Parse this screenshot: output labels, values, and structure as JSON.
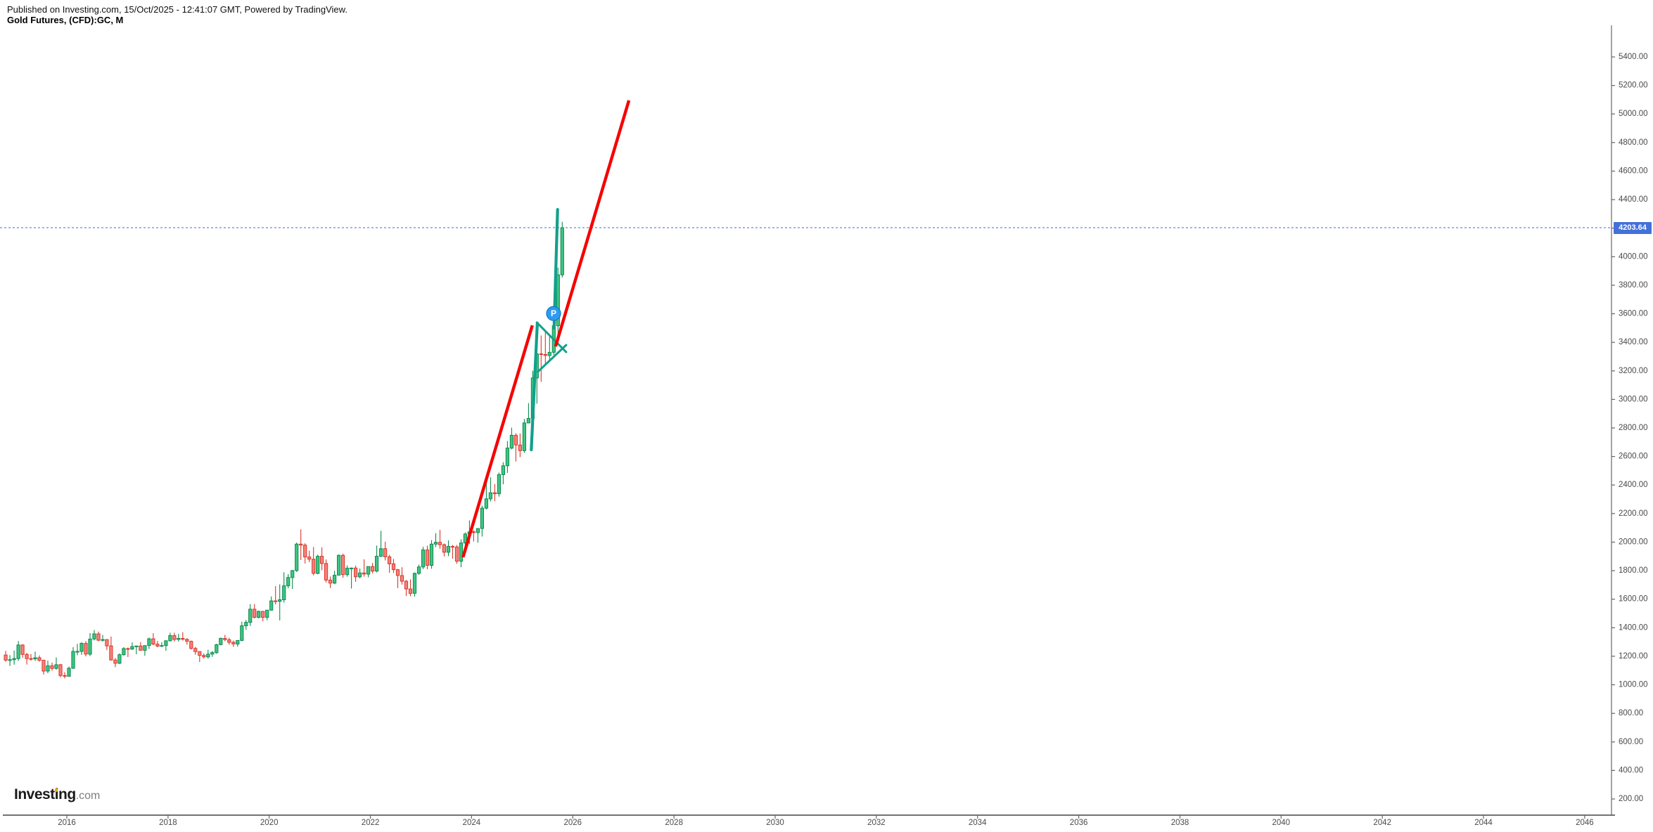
{
  "header": {
    "published_line": "Published on Investing.com, 15/Oct/2025 - 12:41:07 GMT, Powered by TradingView.",
    "instrument_line": "Gold Futures, (CFD):GC, M"
  },
  "logo": {
    "part1": "Invest",
    "part2": "i",
    "part3": "ng",
    "suffix": ".com"
  },
  "price_axis": {
    "last_price_label": "4203.64",
    "ticks": [
      "5400.00",
      "5200.00",
      "5000.00",
      "4800.00",
      "4600.00",
      "4400.00",
      "4200.00",
      "4000.00",
      "3800.00",
      "3600.00",
      "3400.00",
      "3200.00",
      "3000.00",
      "2800.00",
      "2600.00",
      "2400.00",
      "2200.00",
      "2000.00",
      "1800.00",
      "1600.00",
      "1400.00",
      "1200.00",
      "1000.00",
      "800.00",
      "600.00",
      "400.00",
      "200.00"
    ]
  },
  "time_axis": {
    "ticks": [
      "2016",
      "2018",
      "2020",
      "2022",
      "2024",
      "2026",
      "2028",
      "2030",
      "2032",
      "2034",
      "2036",
      "2038",
      "2040",
      "2042",
      "2044",
      "2046"
    ]
  },
  "colors": {
    "up_fill": "#3ec583",
    "up_border": "#0e8a4e",
    "down_fill": "#f2837b",
    "down_border": "#da372a",
    "drawing_teal": "#12a08c",
    "trend_red": "#f60000",
    "last_price_line": "#4666d6",
    "badge_bg": "#4470da",
    "marker_bg": "#2d9bf0",
    "marker_border": "#1478c8",
    "axis_text": "#4a4a4a",
    "axis_line": "#666666"
  },
  "chart_data": {
    "type": "candlestick",
    "title": "Gold Futures, (CFD):GC, M",
    "interval": "monthly",
    "last_price": 4203.64,
    "y_axis": {
      "min": 200,
      "max": 5400,
      "step": 200,
      "side": "right"
    },
    "x_axis": {
      "start_year": 2016,
      "end_year": 2046,
      "step": 2
    },
    "grid": false,
    "candles_format": [
      "year",
      "month",
      "open",
      "high",
      "low",
      "close"
    ],
    "candles": [
      [
        2014,
        10,
        1209,
        1238,
        1161,
        1173
      ],
      [
        2014,
        11,
        1173,
        1208,
        1132,
        1176
      ],
      [
        2014,
        12,
        1176,
        1239,
        1141,
        1184
      ],
      [
        2015,
        1,
        1184,
        1307,
        1167,
        1279
      ],
      [
        2015,
        2,
        1279,
        1285,
        1190,
        1213
      ],
      [
        2015,
        3,
        1213,
        1224,
        1142,
        1184
      ],
      [
        2015,
        4,
        1184,
        1216,
        1169,
        1182
      ],
      [
        2015,
        5,
        1182,
        1232,
        1167,
        1190
      ],
      [
        2015,
        6,
        1190,
        1206,
        1162,
        1172
      ],
      [
        2015,
        7,
        1172,
        1176,
        1072,
        1096
      ],
      [
        2015,
        8,
        1096,
        1170,
        1081,
        1133
      ],
      [
        2015,
        9,
        1133,
        1156,
        1098,
        1115
      ],
      [
        2015,
        10,
        1115,
        1192,
        1105,
        1141
      ],
      [
        2015,
        11,
        1141,
        1146,
        1052,
        1065
      ],
      [
        2015,
        12,
        1065,
        1089,
        1045,
        1060
      ],
      [
        2016,
        1,
        1060,
        1128,
        1060,
        1116
      ],
      [
        2016,
        2,
        1116,
        1264,
        1112,
        1234
      ],
      [
        2016,
        3,
        1234,
        1287,
        1208,
        1234
      ],
      [
        2016,
        4,
        1234,
        1299,
        1210,
        1290
      ],
      [
        2016,
        5,
        1290,
        1306,
        1199,
        1215
      ],
      [
        2016,
        6,
        1215,
        1362,
        1201,
        1321
      ],
      [
        2016,
        7,
        1321,
        1384,
        1311,
        1357
      ],
      [
        2016,
        8,
        1357,
        1373,
        1305,
        1312
      ],
      [
        2016,
        9,
        1312,
        1350,
        1302,
        1317
      ],
      [
        2016,
        10,
        1317,
        1321,
        1243,
        1273
      ],
      [
        2016,
        11,
        1273,
        1338,
        1170,
        1174
      ],
      [
        2016,
        12,
        1174,
        1188,
        1124,
        1151
      ],
      [
        2017,
        1,
        1151,
        1220,
        1146,
        1211
      ],
      [
        2017,
        2,
        1211,
        1264,
        1205,
        1254
      ],
      [
        2017,
        3,
        1254,
        1261,
        1194,
        1251
      ],
      [
        2017,
        4,
        1251,
        1297,
        1244,
        1268
      ],
      [
        2017,
        5,
        1268,
        1273,
        1214,
        1272
      ],
      [
        2017,
        6,
        1272,
        1299,
        1240,
        1242
      ],
      [
        2017,
        7,
        1242,
        1276,
        1204,
        1275
      ],
      [
        2017,
        8,
        1275,
        1331,
        1251,
        1322
      ],
      [
        2017,
        9,
        1322,
        1362,
        1277,
        1285
      ],
      [
        2017,
        10,
        1285,
        1308,
        1263,
        1271
      ],
      [
        2017,
        11,
        1271,
        1299,
        1265,
        1275
      ],
      [
        2017,
        12,
        1275,
        1310,
        1238,
        1309
      ],
      [
        2018,
        1,
        1309,
        1365,
        1303,
        1345
      ],
      [
        2018,
        2,
        1345,
        1365,
        1303,
        1318
      ],
      [
        2018,
        3,
        1318,
        1357,
        1303,
        1325
      ],
      [
        2018,
        4,
        1325,
        1369,
        1310,
        1319
      ],
      [
        2018,
        5,
        1319,
        1326,
        1281,
        1305
      ],
      [
        2018,
        6,
        1305,
        1310,
        1247,
        1255
      ],
      [
        2018,
        7,
        1255,
        1266,
        1210,
        1233
      ],
      [
        2018,
        8,
        1233,
        1235,
        1160,
        1206
      ],
      [
        2018,
        9,
        1206,
        1220,
        1184,
        1196
      ],
      [
        2018,
        10,
        1196,
        1246,
        1184,
        1215
      ],
      [
        2018,
        11,
        1215,
        1237,
        1196,
        1226
      ],
      [
        2018,
        12,
        1226,
        1288,
        1217,
        1281
      ],
      [
        2019,
        1,
        1281,
        1331,
        1277,
        1325
      ],
      [
        2019,
        2,
        1325,
        1350,
        1305,
        1316
      ],
      [
        2019,
        3,
        1316,
        1330,
        1281,
        1298
      ],
      [
        2019,
        4,
        1298,
        1310,
        1266,
        1286
      ],
      [
        2019,
        5,
        1286,
        1311,
        1267,
        1311
      ],
      [
        2019,
        6,
        1311,
        1442,
        1305,
        1414
      ],
      [
        2019,
        7,
        1414,
        1454,
        1385,
        1438
      ],
      [
        2019,
        8,
        1438,
        1565,
        1413,
        1530
      ],
      [
        2019,
        9,
        1530,
        1566,
        1465,
        1473
      ],
      [
        2019,
        10,
        1473,
        1520,
        1465,
        1515
      ],
      [
        2019,
        11,
        1515,
        1517,
        1445,
        1473
      ],
      [
        2019,
        12,
        1473,
        1525,
        1453,
        1523
      ],
      [
        2020,
        1,
        1523,
        1619,
        1520,
        1588
      ],
      [
        2020,
        2,
        1588,
        1692,
        1564,
        1585
      ],
      [
        2020,
        3,
        1585,
        1704,
        1451,
        1596
      ],
      [
        2020,
        4,
        1596,
        1789,
        1576,
        1694
      ],
      [
        2020,
        5,
        1694,
        1776,
        1676,
        1752
      ],
      [
        2020,
        6,
        1752,
        1804,
        1672,
        1801
      ],
      [
        2020,
        7,
        1801,
        1997,
        1790,
        1986
      ],
      [
        2020,
        8,
        1986,
        2089,
        1874,
        1979
      ],
      [
        2020,
        9,
        1979,
        1992,
        1850,
        1896
      ],
      [
        2020,
        10,
        1896,
        1939,
        1859,
        1880
      ],
      [
        2020,
        11,
        1880,
        1966,
        1767,
        1781
      ],
      [
        2020,
        12,
        1781,
        1912,
        1775,
        1901
      ],
      [
        2021,
        1,
        1901,
        1963,
        1803,
        1850
      ],
      [
        2021,
        2,
        1850,
        1878,
        1717,
        1734
      ],
      [
        2021,
        3,
        1734,
        1759,
        1678,
        1713
      ],
      [
        2021,
        4,
        1713,
        1799,
        1705,
        1768
      ],
      [
        2021,
        5,
        1768,
        1913,
        1766,
        1907
      ],
      [
        2021,
        6,
        1907,
        1919,
        1750,
        1772
      ],
      [
        2021,
        7,
        1772,
        1837,
        1758,
        1817
      ],
      [
        2021,
        8,
        1817,
        1822,
        1675,
        1818
      ],
      [
        2021,
        9,
        1818,
        1836,
        1721,
        1757
      ],
      [
        2021,
        10,
        1757,
        1815,
        1746,
        1784
      ],
      [
        2021,
        11,
        1784,
        1879,
        1758,
        1776
      ],
      [
        2021,
        12,
        1776,
        1830,
        1753,
        1829
      ],
      [
        2022,
        1,
        1829,
        1854,
        1781,
        1797
      ],
      [
        2022,
        2,
        1797,
        1976,
        1788,
        1901
      ],
      [
        2022,
        3,
        1901,
        2079,
        1895,
        1954
      ],
      [
        2022,
        4,
        1954,
        2003,
        1872,
        1897
      ],
      [
        2022,
        5,
        1897,
        1911,
        1785,
        1848
      ],
      [
        2022,
        6,
        1848,
        1882,
        1784,
        1807
      ],
      [
        2022,
        7,
        1807,
        1812,
        1678,
        1766
      ],
      [
        2022,
        8,
        1766,
        1824,
        1702,
        1726
      ],
      [
        2022,
        9,
        1726,
        1735,
        1622,
        1672
      ],
      [
        2022,
        10,
        1672,
        1739,
        1621,
        1641
      ],
      [
        2022,
        11,
        1641,
        1787,
        1618,
        1781
      ],
      [
        2022,
        12,
        1781,
        1842,
        1771,
        1826
      ],
      [
        2023,
        1,
        1826,
        1967,
        1811,
        1945
      ],
      [
        2023,
        2,
        1945,
        1975,
        1810,
        1837
      ],
      [
        2023,
        3,
        1837,
        2014,
        1813,
        1986
      ],
      [
        2023,
        4,
        1986,
        2063,
        1965,
        1999
      ],
      [
        2023,
        5,
        1999,
        2086,
        1954,
        1982
      ],
      [
        2023,
        6,
        1982,
        1990,
        1900,
        1929
      ],
      [
        2023,
        7,
        1929,
        2012,
        1902,
        1970
      ],
      [
        2023,
        8,
        1970,
        1980,
        1884,
        1966
      ],
      [
        2023,
        9,
        1966,
        1980,
        1848,
        1866
      ],
      [
        2023,
        10,
        1866,
        2020,
        1824,
        1994
      ],
      [
        2023,
        11,
        1994,
        2068,
        1936,
        2057
      ],
      [
        2023,
        12,
        2057,
        2152,
        1988,
        2072
      ],
      [
        2024,
        1,
        2072,
        2083,
        2004,
        2067
      ],
      [
        2024,
        2,
        2067,
        2098,
        1996,
        2095
      ],
      [
        2024,
        3,
        2095,
        2255,
        2039,
        2238
      ],
      [
        2024,
        4,
        2238,
        2449,
        2229,
        2303
      ],
      [
        2024,
        5,
        2303,
        2454,
        2285,
        2346
      ],
      [
        2024,
        6,
        2346,
        2407,
        2287,
        2339
      ],
      [
        2024,
        7,
        2339,
        2488,
        2319,
        2473
      ],
      [
        2024,
        8,
        2473,
        2560,
        2405,
        2535
      ],
      [
        2024,
        9,
        2535,
        2708,
        2485,
        2659
      ],
      [
        2024,
        10,
        2659,
        2802,
        2650,
        2749
      ],
      [
        2024,
        11,
        2749,
        2762,
        2565,
        2681
      ],
      [
        2024,
        12,
        2681,
        2761,
        2596,
        2641
      ],
      [
        2025,
        1,
        2641,
        2863,
        2625,
        2835
      ],
      [
        2025,
        2,
        2835,
        2974,
        2834,
        2867
      ],
      [
        2025,
        3,
        2867,
        3201,
        2857,
        3150
      ],
      [
        2025,
        4,
        3150,
        3509,
        2970,
        3319
      ],
      [
        2025,
        5,
        3319,
        3448,
        3123,
        3315
      ],
      [
        2025,
        6,
        3315,
        3476,
        3246,
        3308
      ],
      [
        2025,
        7,
        3308,
        3451,
        3272,
        3330
      ],
      [
        2025,
        8,
        3330,
        3557,
        3311,
        3516
      ],
      [
        2025,
        9,
        3516,
        3923,
        3397,
        3873
      ],
      [
        2025,
        10,
        3873,
        4245,
        3854,
        4203.64
      ]
    ],
    "annotations": {
      "trend_lines": [
        {
          "name": "trend-line-1",
          "t1": 2023.83,
          "p1": 1894,
          "t2": 2025.2,
          "p2": 3519
        },
        {
          "name": "trend-line-2",
          "t1": 2025.66,
          "p1": 3371,
          "t2": 2027.11,
          "p2": 5095
        }
      ],
      "pennant": {
        "upper": {
          "t1": 2025.29,
          "p1": 3539,
          "t2": 2025.87,
          "p2": 3332
        },
        "lower": {
          "t1": 2025.31,
          "p1": 3194,
          "t2": 2025.87,
          "p2": 3381
        },
        "poles": [
          {
            "t1": 2025.18,
            "p1": 2647,
            "t2": 2025.3,
            "p2": 3534
          },
          {
            "t1": 2025.63,
            "p1": 3499,
            "t2": 2025.7,
            "p2": 4331
          }
        ]
      },
      "marker": {
        "t": 2025.62,
        "p": 3602,
        "label": "P"
      }
    }
  }
}
